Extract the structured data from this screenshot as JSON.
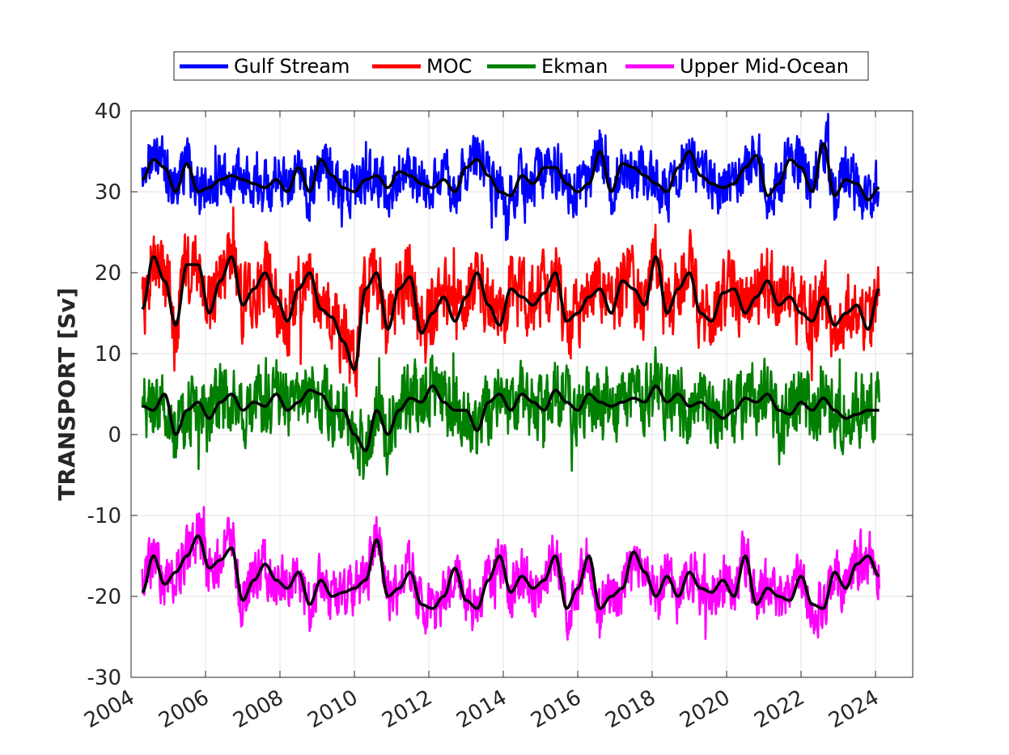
{
  "chart_data": {
    "type": "line",
    "ylabel": "TRANSPORT [Sv]",
    "xlabel": "",
    "xlim": [
      2004,
      2025
    ],
    "ylim": [
      -30,
      40
    ],
    "x_ticks": [
      "2004",
      "2006",
      "2008",
      "2010",
      "2012",
      "2014",
      "2016",
      "2018",
      "2020",
      "2022",
      "2024"
    ],
    "y_ticks": [
      "40",
      "30",
      "20",
      "10",
      "0",
      "-10",
      "-20",
      "-30"
    ],
    "grid": true,
    "legend_position": "top-center",
    "smoothed_color": "#000000",
    "legend": [
      {
        "name": "Gulf Stream",
        "color": "#0000ff"
      },
      {
        "name": "MOC",
        "color": "#ff0000"
      },
      {
        "name": "Ekman",
        "color": "#007f00"
      },
      {
        "name": "Upper Mid-Ocean",
        "color": "#ff00ff"
      }
    ],
    "series": [
      {
        "name": "Gulf Stream",
        "color": "#0000ff",
        "noise": 3.0,
        "x": [
          2004.3,
          2004.6,
          2004.9,
          2005.2,
          2005.5,
          2005.8,
          2006.1,
          2006.4,
          2006.7,
          2007.0,
          2007.3,
          2007.6,
          2007.9,
          2008.2,
          2008.5,
          2008.8,
          2009.1,
          2009.4,
          2009.7,
          2010.0,
          2010.3,
          2010.6,
          2010.9,
          2011.2,
          2011.5,
          2011.8,
          2012.1,
          2012.4,
          2012.7,
          2013.0,
          2013.3,
          2013.6,
          2013.9,
          2014.2,
          2014.5,
          2014.8,
          2015.1,
          2015.4,
          2015.7,
          2016.0,
          2016.3,
          2016.6,
          2016.9,
          2017.2,
          2017.5,
          2017.8,
          2018.1,
          2018.4,
          2018.7,
          2019.0,
          2019.3,
          2019.6,
          2019.9,
          2020.2,
          2020.5,
          2020.8,
          2021.1,
          2021.4,
          2021.7,
          2022.0,
          2022.3,
          2022.6,
          2022.9,
          2023.2,
          2023.5,
          2023.8,
          2024.1
        ],
        "smooth": [
          31.5,
          34,
          33,
          30,
          33.5,
          30,
          30.5,
          31.5,
          32,
          31.5,
          31,
          30.5,
          31.5,
          30,
          33,
          30,
          34,
          32,
          30.5,
          30,
          31.5,
          32,
          30.5,
          32.5,
          32,
          31,
          30.5,
          31.5,
          30,
          33,
          34,
          32,
          30,
          29.5,
          32,
          31,
          33,
          33,
          31,
          30,
          31,
          35,
          30,
          33.5,
          33,
          32,
          31,
          30,
          33,
          35,
          32,
          31,
          30.5,
          31,
          33,
          34.5,
          29.5,
          31,
          34,
          33,
          30,
          36,
          29.5,
          31.5,
          31,
          29,
          30.5
        ]
      },
      {
        "name": "MOC",
        "color": "#ff0000",
        "noise": 4.0,
        "x": [
          2004.3,
          2004.6,
          2004.9,
          2005.2,
          2005.5,
          2005.8,
          2006.1,
          2006.4,
          2006.7,
          2007.0,
          2007.3,
          2007.6,
          2007.9,
          2008.2,
          2008.5,
          2008.8,
          2009.1,
          2009.4,
          2009.7,
          2010.0,
          2010.3,
          2010.6,
          2010.9,
          2011.2,
          2011.5,
          2011.8,
          2012.1,
          2012.4,
          2012.7,
          2013.0,
          2013.3,
          2013.6,
          2013.9,
          2014.2,
          2014.5,
          2014.8,
          2015.1,
          2015.4,
          2015.7,
          2016.0,
          2016.3,
          2016.6,
          2016.9,
          2017.2,
          2017.5,
          2017.8,
          2018.1,
          2018.4,
          2018.7,
          2019.0,
          2019.3,
          2019.6,
          2019.9,
          2020.2,
          2020.5,
          2020.8,
          2021.1,
          2021.4,
          2021.7,
          2022.0,
          2022.3,
          2022.6,
          2022.9,
          2023.2,
          2023.5,
          2023.8,
          2024.1
        ],
        "smooth": [
          15.5,
          22,
          19,
          13.5,
          21,
          21,
          15,
          19,
          22,
          16,
          18,
          20,
          17,
          14,
          18,
          20,
          15.5,
          14.5,
          11.5,
          8,
          18,
          20,
          13,
          18,
          19.5,
          12.5,
          15,
          17,
          14,
          17,
          20,
          16,
          13.5,
          18,
          17,
          16,
          17.5,
          20,
          14,
          15,
          17,
          18,
          15,
          19,
          18,
          16,
          22,
          15,
          18,
          20,
          15,
          14,
          17.5,
          18,
          15,
          17,
          19,
          16,
          17,
          15,
          14,
          17,
          13.5,
          15,
          16,
          13,
          18
        ]
      },
      {
        "name": "Ekman",
        "color": "#007f00",
        "noise": 4.0,
        "x": [
          2004.3,
          2004.6,
          2004.9,
          2005.2,
          2005.5,
          2005.8,
          2006.1,
          2006.4,
          2006.7,
          2007.0,
          2007.3,
          2007.6,
          2007.9,
          2008.2,
          2008.5,
          2008.8,
          2009.1,
          2009.4,
          2009.7,
          2010.0,
          2010.3,
          2010.6,
          2010.9,
          2011.2,
          2011.5,
          2011.8,
          2012.1,
          2012.4,
          2012.7,
          2013.0,
          2013.3,
          2013.6,
          2013.9,
          2014.2,
          2014.5,
          2014.8,
          2015.1,
          2015.4,
          2015.7,
          2016.0,
          2016.3,
          2016.6,
          2016.9,
          2017.2,
          2017.5,
          2017.8,
          2018.1,
          2018.4,
          2018.7,
          2019.0,
          2019.3,
          2019.6,
          2019.9,
          2020.2,
          2020.5,
          2020.8,
          2021.1,
          2021.4,
          2021.7,
          2022.0,
          2022.3,
          2022.6,
          2022.9,
          2023.2,
          2023.5,
          2023.8,
          2024.1
        ],
        "smooth": [
          3.5,
          3,
          5,
          0,
          3,
          4,
          2,
          4,
          5,
          3,
          4,
          3.5,
          5,
          3,
          4,
          5.5,
          5,
          3,
          3,
          0,
          -2,
          3,
          0,
          3,
          4.5,
          4,
          6,
          4,
          3,
          3,
          0.5,
          4,
          5,
          3,
          5,
          4,
          3,
          5.5,
          4,
          3,
          5,
          4,
          3.5,
          4,
          4.5,
          4,
          6,
          4,
          5,
          3.5,
          4,
          3,
          2,
          3,
          4.5,
          4,
          5,
          3,
          2.5,
          4,
          3,
          4.5,
          3,
          2,
          2.5,
          3,
          3
        ]
      },
      {
        "name": "Upper Mid-Ocean",
        "color": "#ff00ff",
        "noise": 3.0,
        "x": [
          2004.3,
          2004.6,
          2004.9,
          2005.2,
          2005.5,
          2005.8,
          2006.1,
          2006.4,
          2006.7,
          2007.0,
          2007.3,
          2007.6,
          2007.9,
          2008.2,
          2008.5,
          2008.8,
          2009.1,
          2009.4,
          2009.7,
          2010.0,
          2010.3,
          2010.6,
          2010.9,
          2011.2,
          2011.5,
          2011.8,
          2012.1,
          2012.4,
          2012.7,
          2013.0,
          2013.3,
          2013.6,
          2013.9,
          2014.2,
          2014.5,
          2014.8,
          2015.1,
          2015.4,
          2015.7,
          2016.0,
          2016.3,
          2016.6,
          2016.9,
          2017.2,
          2017.5,
          2017.8,
          2018.1,
          2018.4,
          2018.7,
          2019.0,
          2019.3,
          2019.6,
          2019.9,
          2020.2,
          2020.5,
          2020.8,
          2021.1,
          2021.4,
          2021.7,
          2022.0,
          2022.3,
          2022.6,
          2022.9,
          2023.2,
          2023.5,
          2023.8,
          2024.1
        ],
        "smooth": [
          -19.5,
          -15,
          -18.5,
          -17,
          -15,
          -12.5,
          -16.5,
          -15.5,
          -14,
          -20.5,
          -18,
          -16,
          -18,
          -19,
          -17,
          -21,
          -18,
          -20,
          -19.5,
          -19,
          -18,
          -13,
          -20,
          -19,
          -17,
          -21,
          -21.5,
          -20,
          -16.5,
          -20.5,
          -21.5,
          -18,
          -15,
          -19.5,
          -17.5,
          -19,
          -18,
          -15,
          -21.5,
          -19,
          -15,
          -21.5,
          -20,
          -19,
          -14.5,
          -17,
          -20,
          -17.5,
          -20,
          -17,
          -19,
          -19.5,
          -18,
          -20,
          -15,
          -21,
          -19,
          -20,
          -20.5,
          -17.5,
          -21,
          -21.5,
          -17,
          -19,
          -16,
          -15,
          -17.5
        ]
      }
    ]
  }
}
